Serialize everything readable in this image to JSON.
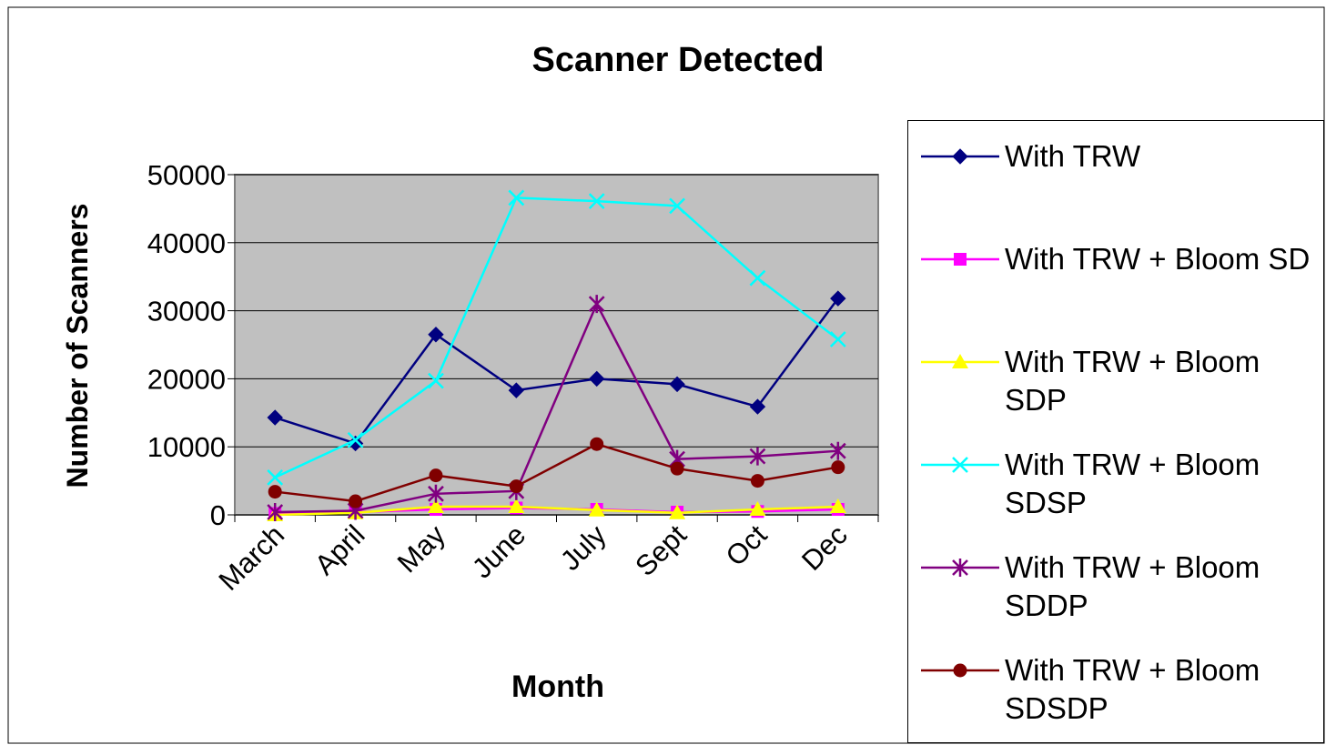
{
  "chart_data": {
    "type": "line",
    "title": "Scanner Detected",
    "x_label": "Month",
    "y_label": "Number of Scanners",
    "categories": [
      "March",
      "April",
      "May",
      "June",
      "July",
      "Sept",
      "Oct",
      "Dec"
    ],
    "ylim": [
      0,
      50000
    ],
    "yticks": [
      0,
      10000,
      20000,
      30000,
      40000,
      50000
    ],
    "grid": true,
    "legend": "right",
    "series": [
      {
        "name": "With TRW",
        "color": "#000080",
        "marker": "diamond",
        "values": [
          14300,
          10500,
          26500,
          18300,
          20000,
          19200,
          15900,
          31800
        ]
      },
      {
        "name": "With TRW + Bloom SD",
        "color": "#ff00ff",
        "marker": "square",
        "values": [
          200,
          400,
          800,
          1000,
          800,
          400,
          500,
          800
        ]
      },
      {
        "name": "With TRW + Bloom SDP",
        "color": "#ffff00",
        "marker": "triangle",
        "values": [
          0,
          300,
          1200,
          1200,
          700,
          300,
          800,
          1200
        ]
      },
      {
        "name": "With TRW + Bloom SDSP",
        "color": "#00ffff",
        "marker": "x",
        "values": [
          5500,
          11000,
          19700,
          46600,
          46100,
          45400,
          34800,
          25800
        ]
      },
      {
        "name": "With TRW + Bloom SDDP",
        "color": "#800080",
        "marker": "star",
        "values": [
          400,
          600,
          3100,
          3500,
          31000,
          8200,
          8600,
          9400
        ]
      },
      {
        "name": "With TRW + Bloom SDSDP",
        "color": "#800000",
        "marker": "circle",
        "values": [
          3400,
          2000,
          5800,
          4200,
          10400,
          6800,
          5000,
          7000
        ]
      }
    ]
  }
}
